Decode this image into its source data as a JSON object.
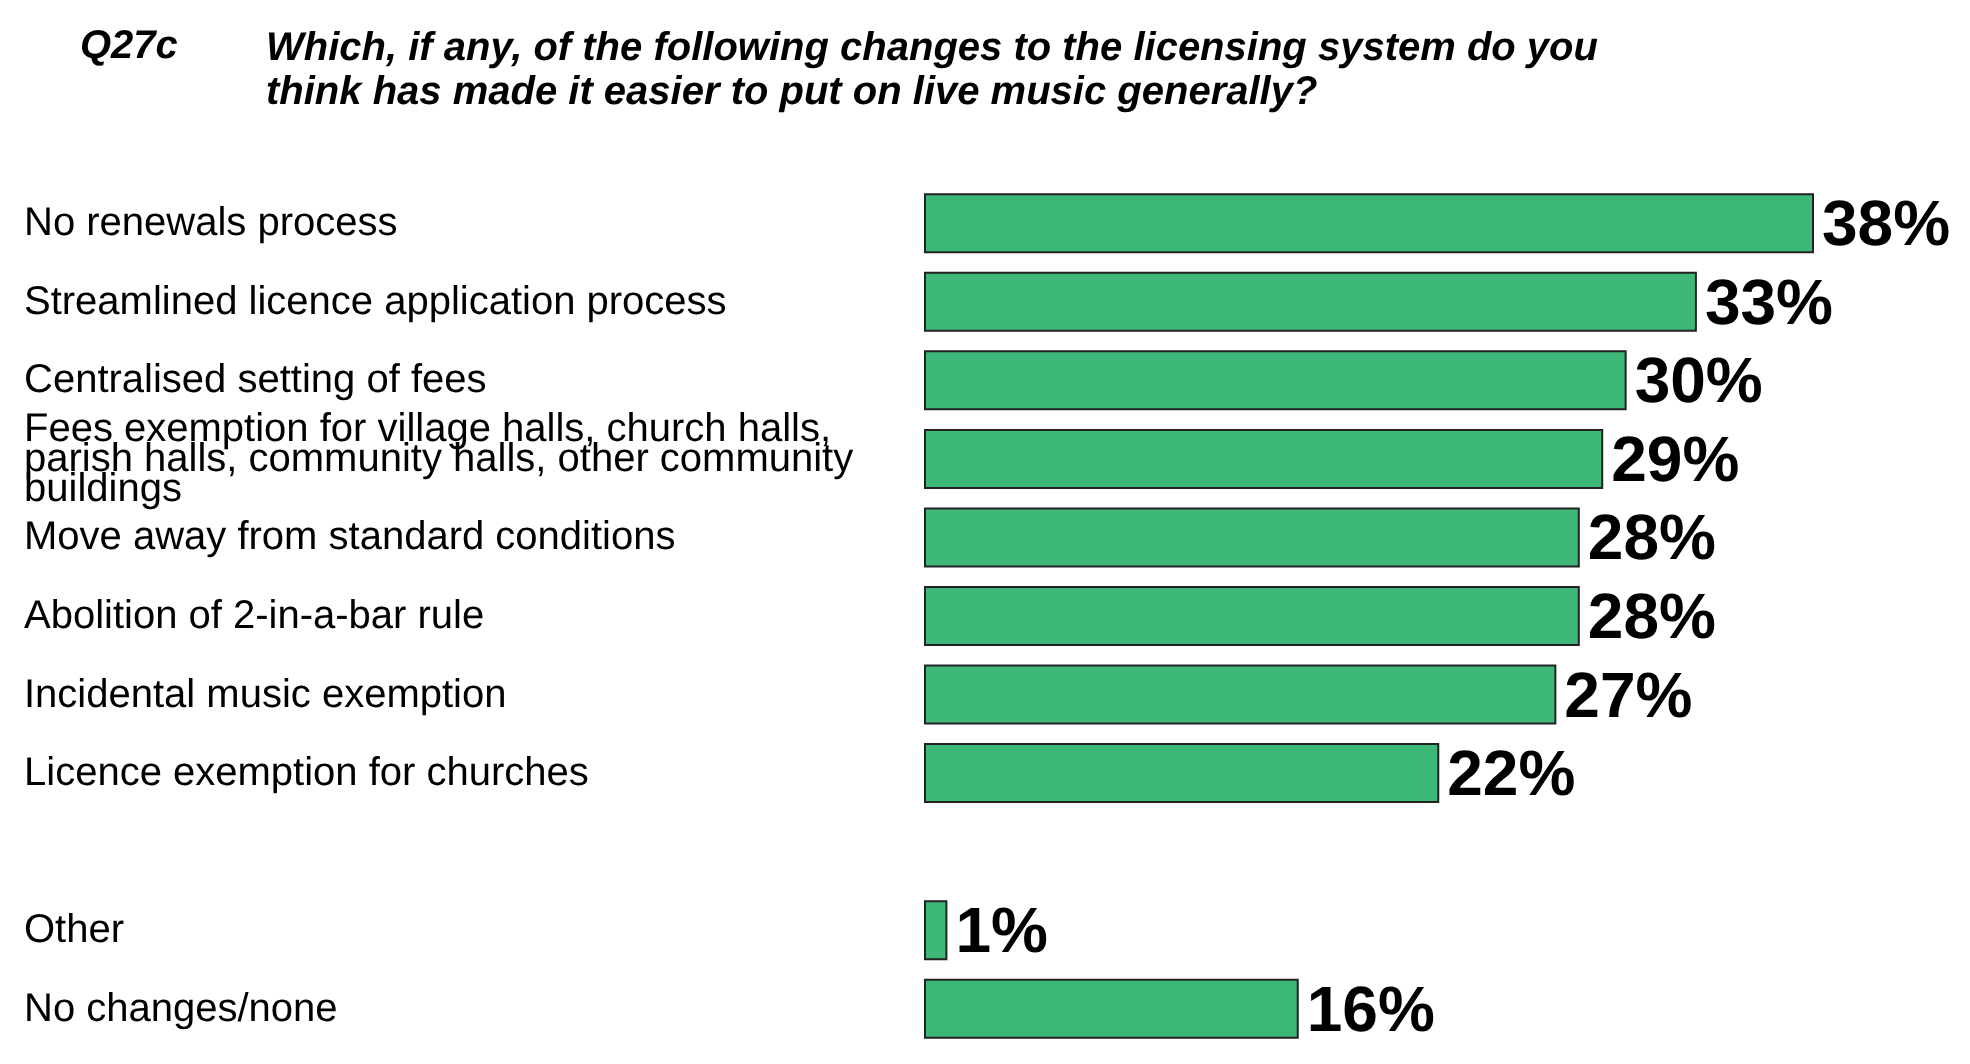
{
  "chart_data": {
    "type": "bar",
    "orientation": "horizontal",
    "title": "Q27c",
    "subtitle": "Which, if any, of the following changes to the licensing system do you think has made it easier to put on live music generally?",
    "categories": [
      "No renewals process",
      "Streamlined licence application process",
      "Centralised setting of fees",
      "Fees exemption for village halls, church halls, parish halls, community halls, other community buildings",
      "Move away from standard conditions",
      "Abolition of 2-in-a-bar rule",
      "Incidental music exemption",
      "Licence exemption for churches",
      null,
      "Other",
      "No changes/none"
    ],
    "values": [
      38,
      33,
      30,
      29,
      28,
      28,
      27,
      22,
      null,
      1,
      16
    ],
    "value_labels": [
      "38%",
      "33%",
      "30%",
      "29%",
      "28%",
      "28%",
      "27%",
      "22%",
      null,
      "1%",
      "16%"
    ],
    "color": "#3db878"
  }
}
